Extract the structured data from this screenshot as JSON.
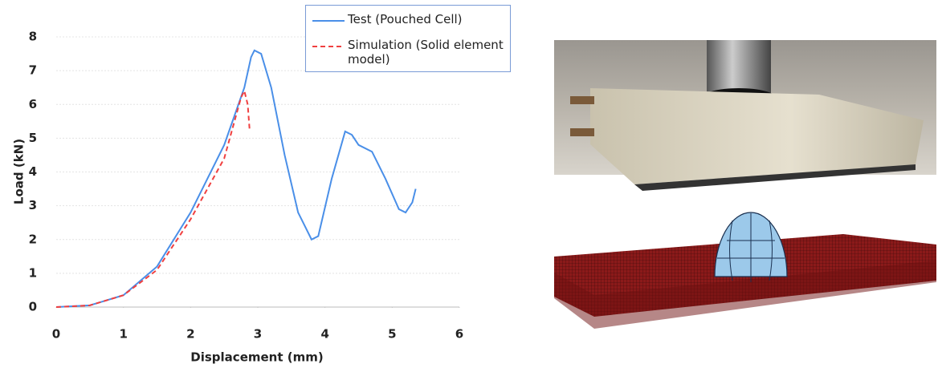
{
  "chart_data": {
    "type": "line",
    "xlabel": "Displacement (mm)",
    "ylabel": "Load (kN)",
    "xlim": [
      0,
      6
    ],
    "xticks": [
      0,
      1,
      2,
      3,
      4,
      5,
      6
    ],
    "ylim": [
      0,
      8
    ],
    "yticks": [
      0,
      1,
      2,
      3,
      4,
      5,
      6,
      7,
      8
    ],
    "grid": true,
    "series": [
      {
        "name": "Test (Pouched Cell)",
        "color": "#4a8fe8",
        "linestyle": "solid",
        "x": [
          0,
          0.5,
          1,
          1.5,
          2,
          2.5,
          2.8,
          2.9,
          2.95,
          3.05,
          3.2,
          3.4,
          3.6,
          3.8,
          3.9,
          4.1,
          4.3,
          4.4,
          4.5,
          4.7,
          4.9,
          5.1,
          5.2,
          5.3,
          5.35
        ],
        "values": [
          0,
          0.05,
          0.35,
          1.2,
          2.8,
          4.8,
          6.5,
          7.4,
          7.6,
          7.5,
          6.5,
          4.5,
          2.8,
          2.0,
          2.1,
          3.8,
          5.2,
          5.1,
          4.8,
          4.6,
          3.8,
          2.9,
          2.8,
          3.1,
          3.5
        ]
      },
      {
        "name": "Simulation (Solid element model)",
        "color": "#f04040",
        "linestyle": "dashed",
        "x": [
          0,
          0.5,
          1,
          1.5,
          2,
          2.5,
          2.75,
          2.8,
          2.85,
          2.88
        ],
        "values": [
          0,
          0.05,
          0.35,
          1.1,
          2.6,
          4.4,
          6.2,
          6.4,
          6.0,
          5.2
        ]
      }
    ]
  }
}
